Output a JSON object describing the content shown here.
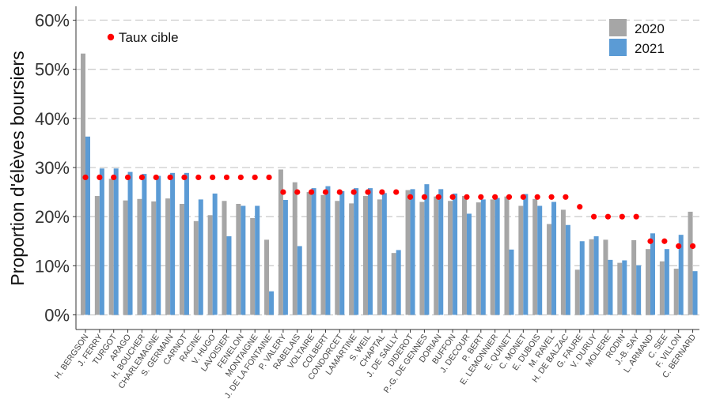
{
  "chart_data": {
    "type": "bar",
    "title": "",
    "xlabel": "",
    "ylabel": "Proportion d'élèves boursiers",
    "ylim": [
      0,
      62
    ],
    "yticks": [
      "0%",
      "10%",
      "20%",
      "30%",
      "40%",
      "50%",
      "60%"
    ],
    "grid": "horizontal dashed",
    "legend_position": "top-right",
    "colors": {
      "2020": "#a6a6a6",
      "2021": "#5b9bd5",
      "target": "#ff0000"
    },
    "categories": [
      "H. BERGSON",
      "J. FERRY",
      "TURGOT",
      "ARAGO",
      "H. BOUCHER",
      "CHARLEMAGNE",
      "S. GERMAIN",
      "CARNOT",
      "RACINE",
      "V. HUGO",
      "LAVOISIER",
      "FENELON",
      "MONTAIGNE",
      "J. DE LA FONTAINE",
      "P. VALERY",
      "RABELAIS",
      "VOLTAIRE",
      "COLBERT",
      "CONDORCET",
      "LAMARTINE",
      "S. WEIL",
      "CHAPTAL",
      "J. DE SAILLY",
      "DIDEROT",
      "P.-G. DE GENNES",
      "DORIAN",
      "BUFFON",
      "J. DECOUR",
      "P. BERT",
      "E. LEMONNIER",
      "E. QUINET",
      "C. MONET",
      "E. DUBOIS",
      "M. RAVEL",
      "H. DE BALZAC",
      "G. FAURE",
      "V. DURUY",
      "MOLIERE",
      "RODIN",
      "J.-B. SAY",
      "L. ARMAND",
      "C. SEE",
      "F. VILLON",
      "C. BERNARD"
    ],
    "series": [
      {
        "name": "2020",
        "values": [
          53.2,
          24.2,
          27.7,
          23.3,
          23.6,
          23.1,
          23.7,
          22.6,
          19.1,
          20.3,
          23.2,
          22.6,
          19.7,
          15.3,
          29.6,
          27.0,
          25.0,
          24.4,
          23.2,
          22.7,
          24.2,
          23.5,
          12.6,
          25.4,
          23.0,
          24.1,
          23.2,
          24.2,
          22.9,
          23.5,
          24.1,
          22.2,
          23.6,
          18.5,
          21.4,
          9.2,
          15.4,
          15.3,
          10.6,
          15.2,
          13.4,
          10.9,
          9.4,
          21.0
        ]
      },
      {
        "name": "2021",
        "values": [
          36.3,
          29.8,
          29.8,
          29.1,
          28.7,
          28.3,
          28.9,
          28.9,
          23.5,
          24.7,
          16.0,
          22.2,
          22.2,
          4.8,
          23.4,
          14.0,
          25.8,
          26.2,
          25.2,
          25.8,
          25.8,
          24.8,
          13.2,
          25.6,
          26.6,
          25.6,
          24.7,
          20.6,
          23.5,
          23.8,
          13.3,
          24.6,
          22.2,
          23.0,
          18.3,
          15.0,
          16.0,
          11.2,
          11.1,
          10.1,
          16.6,
          13.4,
          16.3,
          8.9
        ]
      }
    ],
    "target": {
      "name": "Taux cible",
      "values": [
        28,
        28,
        28,
        28,
        28,
        28,
        28,
        28,
        28,
        28,
        28,
        28,
        28,
        28,
        25,
        25,
        25,
        25,
        25,
        25,
        25,
        25,
        25,
        24,
        24,
        24,
        24,
        24,
        24,
        24,
        24,
        24,
        24,
        24,
        24,
        22,
        20,
        20,
        20,
        20,
        15,
        15,
        14,
        14
      ]
    }
  }
}
